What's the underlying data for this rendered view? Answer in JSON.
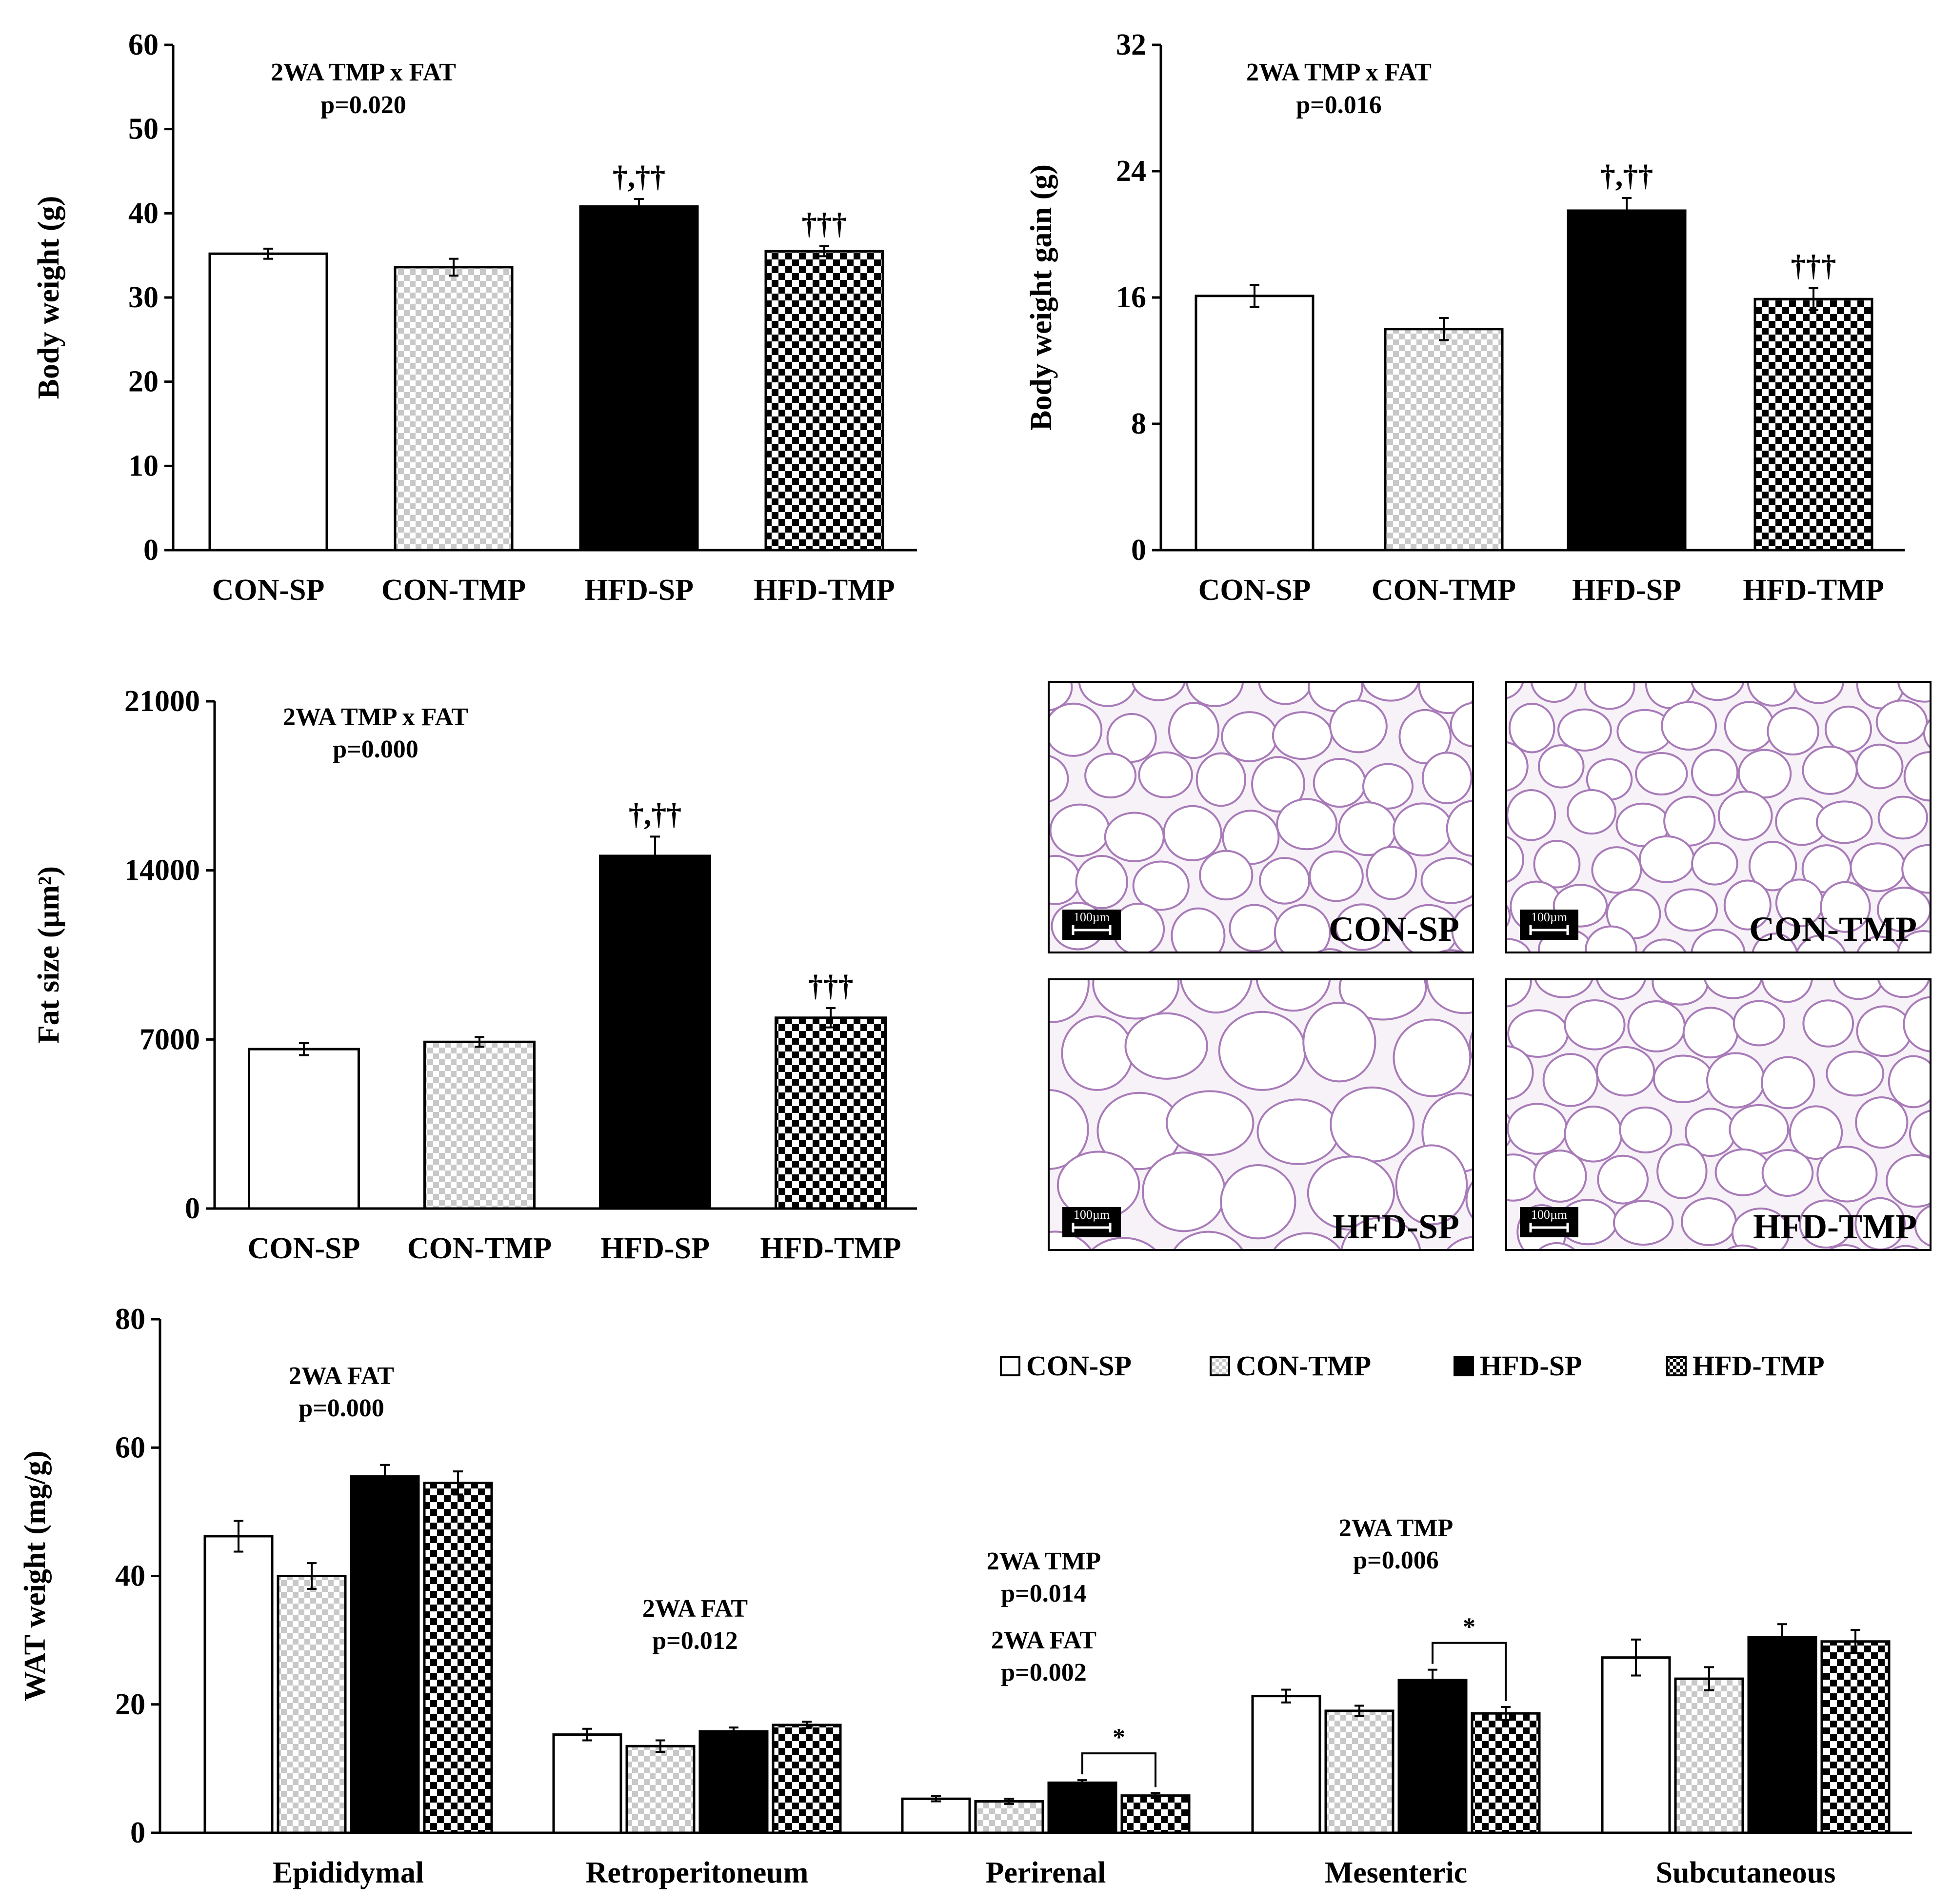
{
  "colors": {
    "black": "#000000",
    "white": "#ffffff",
    "grid_light": "#c8c8c8",
    "tissue_purple": "#a87bb8",
    "tissue_bg": "#f5f0f6"
  },
  "chart_data": [
    {
      "id": "body_weight",
      "type": "bar",
      "categories": [
        "CON-SP",
        "CON-TMP",
        "HFD-SP",
        "HFD-TMP"
      ],
      "values": [
        35.2,
        33.6,
        40.8,
        35.5
      ],
      "errors": [
        0.6,
        1.0,
        0.9,
        0.6
      ],
      "ylabel": "Body weight (g)",
      "ylim": [
        0,
        60
      ],
      "yticks": [
        0,
        10,
        20,
        30,
        40,
        50,
        60
      ],
      "annotation": [
        "2WA TMP x FAT",
        "p=0.020"
      ],
      "sig_marks": [
        "",
        "",
        "†,††",
        "†††"
      ]
    },
    {
      "id": "body_weight_gain",
      "type": "bar",
      "categories": [
        "CON-SP",
        "CON-TMP",
        "HFD-SP",
        "HFD-TMP"
      ],
      "values": [
        16.1,
        14.0,
        21.5,
        15.9
      ],
      "errors": [
        0.7,
        0.7,
        0.8,
        0.7
      ],
      "ylabel": "Body weight gain (g)",
      "ylim": [
        0,
        32
      ],
      "yticks": [
        0,
        8,
        16,
        24,
        32
      ],
      "annotation": [
        "2WA TMP x FAT",
        "p=0.016"
      ],
      "sig_marks": [
        "",
        "",
        "†,††",
        "†††"
      ]
    },
    {
      "id": "fat_size",
      "type": "bar",
      "categories": [
        "CON-SP",
        "CON-TMP",
        "HFD-SP",
        "HFD-TMP"
      ],
      "values": [
        6600,
        6900,
        14600,
        7900
      ],
      "errors": [
        250,
        200,
        800,
        400
      ],
      "ylabel": "Fat size (µm²)",
      "ylim": [
        0,
        21000
      ],
      "yticks": [
        0,
        7000,
        14000,
        21000
      ],
      "annotation": [
        "2WA TMP x FAT",
        "p=0.000"
      ],
      "sig_marks": [
        "",
        "",
        "†,††",
        "†††"
      ]
    },
    {
      "id": "wat_weight",
      "type": "bar",
      "categories": [
        "Epididymal",
        "Retroperitoneum",
        "Perirenal",
        "Mesenteric",
        "Subcutaneous"
      ],
      "series": [
        {
          "name": "CON-SP",
          "values": [
            46.2,
            15.3,
            5.3,
            21.3,
            27.3
          ],
          "errors": [
            2.4,
            0.9,
            0.4,
            1.0,
            2.8
          ]
        },
        {
          "name": "CON-TMP",
          "values": [
            40.0,
            13.5,
            4.9,
            19.0,
            24.0
          ],
          "errors": [
            2.0,
            0.9,
            0.4,
            0.8,
            1.8
          ]
        },
        {
          "name": "HFD-SP",
          "values": [
            55.5,
            15.8,
            7.8,
            23.8,
            30.5
          ],
          "errors": [
            1.8,
            0.6,
            0.4,
            1.6,
            2.0
          ]
        },
        {
          "name": "HFD-TMP",
          "values": [
            54.5,
            16.8,
            5.8,
            18.6,
            29.8
          ],
          "errors": [
            1.8,
            0.5,
            0.4,
            1.0,
            1.8
          ]
        }
      ],
      "ylabel": "WAT weight (mg/g)",
      "ylim": [
        0,
        80
      ],
      "yticks": [
        0,
        20,
        40,
        60,
        80
      ],
      "annotations": [
        {
          "group": 0,
          "lines": [
            "2WA FAT",
            "p=0.000"
          ]
        },
        {
          "group": 1,
          "lines": [
            "2WA FAT",
            "p=0.012"
          ]
        },
        {
          "group": 2,
          "lines": [
            "2WA TMP",
            "p=0.014",
            "2WA FAT",
            "p=0.002"
          ]
        },
        {
          "group": 3,
          "lines": [
            "2WA TMP",
            "p=0.006"
          ]
        }
      ],
      "brackets": [
        {
          "group": 2,
          "from": 2,
          "to": 3,
          "label": "*"
        },
        {
          "group": 3,
          "from": 2,
          "to": 3,
          "label": "*"
        }
      ],
      "legend_position": "top-right"
    }
  ],
  "micrographs": [
    {
      "label": "CON-SP",
      "scale": "100µm"
    },
    {
      "label": "CON-TMP",
      "scale": "100µm"
    },
    {
      "label": "HFD-SP",
      "scale": "100µm"
    },
    {
      "label": "HFD-TMP",
      "scale": "100µm"
    }
  ]
}
